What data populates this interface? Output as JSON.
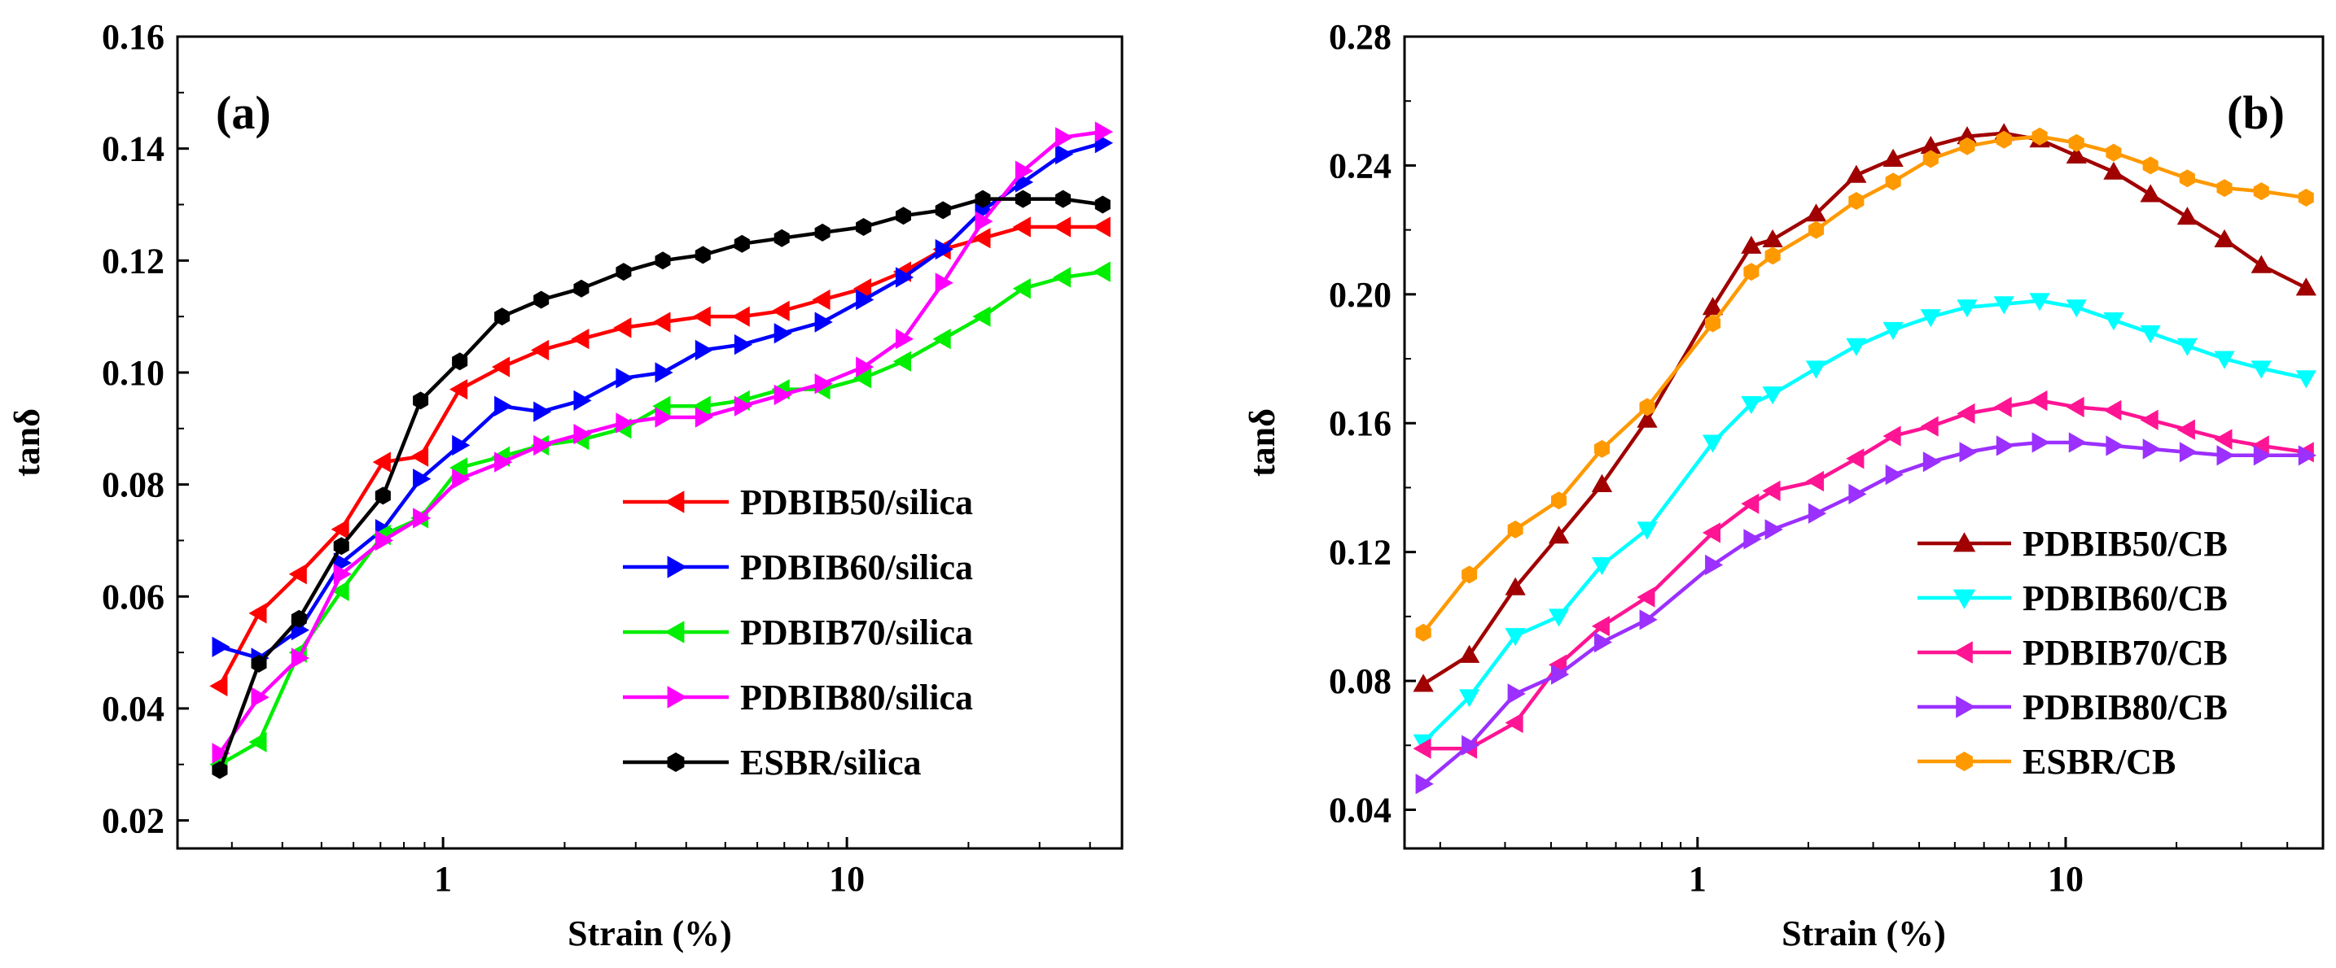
{
  "chart_data": [
    {
      "type": "line",
      "panel_label": "(a)",
      "xlabel": "Strain (%)",
      "ylabel": "tanδ",
      "xscale": "log",
      "xlim": [
        0.22,
        48
      ],
      "ylim": [
        0.015,
        0.16
      ],
      "xticks": [
        1,
        10
      ],
      "xtick_labels": [
        "1",
        "10"
      ],
      "yticks": [
        0.02,
        0.04,
        0.06,
        0.08,
        0.1,
        0.12,
        0.14,
        0.16
      ],
      "ytick_labels": [
        "0.02",
        "0.04",
        "0.06",
        "0.08",
        "0.10",
        "0.12",
        "0.14",
        "0.16"
      ],
      "legend_position": "bottom-right",
      "series": [
        {
          "name": "PDBIB50/silica",
          "color": "#ff0000",
          "marker": "triangle-left",
          "x": [
            0.28,
            0.35,
            0.44,
            0.56,
            0.71,
            0.88,
            1.1,
            1.4,
            1.75,
            2.2,
            2.8,
            3.5,
            4.4,
            5.5,
            6.9,
            8.7,
            11,
            13.8,
            17.3,
            21.7,
            27.3,
            34.3,
            43
          ],
          "values": [
            0.044,
            0.057,
            0.064,
            0.072,
            0.084,
            0.085,
            0.097,
            0.101,
            0.104,
            0.106,
            0.108,
            0.109,
            0.11,
            0.11,
            0.111,
            0.113,
            0.115,
            0.118,
            0.122,
            0.124,
            0.126,
            0.126,
            0.126
          ]
        },
        {
          "name": "PDBIB60/silica",
          "color": "#0000ff",
          "marker": "triangle-right",
          "x": [
            0.28,
            0.35,
            0.44,
            0.56,
            0.71,
            0.88,
            1.1,
            1.4,
            1.75,
            2.2,
            2.8,
            3.5,
            4.4,
            5.5,
            6.9,
            8.7,
            11,
            13.8,
            17.3,
            21.7,
            27.3,
            34.3,
            43
          ],
          "values": [
            0.051,
            0.049,
            0.054,
            0.066,
            0.072,
            0.081,
            0.087,
            0.094,
            0.093,
            0.095,
            0.099,
            0.1,
            0.104,
            0.105,
            0.107,
            0.109,
            0.113,
            0.117,
            0.122,
            0.129,
            0.134,
            0.139,
            0.141
          ]
        },
        {
          "name": "PDBIB70/silica",
          "color": "#00ee00",
          "marker": "triangle-left",
          "x": [
            0.28,
            0.35,
            0.44,
            0.56,
            0.71,
            0.88,
            1.1,
            1.4,
            1.75,
            2.2,
            2.8,
            3.5,
            4.4,
            5.5,
            6.9,
            8.7,
            11,
            13.8,
            17.3,
            21.7,
            27.3,
            34.3,
            43
          ],
          "values": [
            0.03,
            0.034,
            0.05,
            0.061,
            0.071,
            0.074,
            0.083,
            0.085,
            0.087,
            0.088,
            0.09,
            0.094,
            0.094,
            0.095,
            0.097,
            0.097,
            0.099,
            0.102,
            0.106,
            0.11,
            0.115,
            0.117,
            0.118
          ]
        },
        {
          "name": "PDBIB80/silica",
          "color": "#ff00ff",
          "marker": "triangle-right",
          "x": [
            0.28,
            0.35,
            0.44,
            0.56,
            0.71,
            0.88,
            1.1,
            1.4,
            1.75,
            2.2,
            2.8,
            3.5,
            4.4,
            5.5,
            6.9,
            8.7,
            11,
            13.8,
            17.3,
            21.7,
            27.3,
            34.3,
            43
          ],
          "values": [
            0.032,
            0.042,
            0.049,
            0.064,
            0.07,
            0.074,
            0.081,
            0.084,
            0.087,
            0.089,
            0.091,
            0.092,
            0.092,
            0.094,
            0.096,
            0.098,
            0.101,
            0.106,
            0.116,
            0.127,
            0.136,
            0.142,
            0.143
          ]
        },
        {
          "name": "ESBR/silica",
          "color": "#000000",
          "marker": "hexagon",
          "x": [
            0.28,
            0.35,
            0.44,
            0.56,
            0.71,
            0.88,
            1.1,
            1.4,
            1.75,
            2.2,
            2.8,
            3.5,
            4.4,
            5.5,
            6.9,
            8.7,
            11,
            13.8,
            17.3,
            21.7,
            27.3,
            34.3,
            43
          ],
          "values": [
            0.029,
            0.048,
            0.056,
            0.069,
            0.078,
            0.095,
            0.102,
            0.11,
            0.113,
            0.115,
            0.118,
            0.12,
            0.121,
            0.123,
            0.124,
            0.125,
            0.126,
            0.128,
            0.129,
            0.131,
            0.131,
            0.131,
            0.13
          ]
        }
      ]
    },
    {
      "type": "line",
      "panel_label": "(b)",
      "xlabel": "Strain (%)",
      "ylabel": "tanδ",
      "xscale": "log",
      "xlim": [
        0.16,
        50
      ],
      "ylim": [
        0.028,
        0.28
      ],
      "xticks": [
        1,
        10
      ],
      "xtick_labels": [
        "1",
        "10"
      ],
      "yticks": [
        0.04,
        0.08,
        0.12,
        0.16,
        0.2,
        0.24,
        0.28
      ],
      "ytick_labels": [
        "0.04",
        "0.08",
        "0.12",
        "0.16",
        "0.20",
        "0.24",
        "0.28"
      ],
      "legend_position": "bottom-right",
      "series": [
        {
          "name": "PDBIB50/CB",
          "color": "#a00000",
          "marker": "triangle-up",
          "x": [
            0.18,
            0.24,
            0.32,
            0.42,
            0.55,
            0.73,
            1.1,
            1.4,
            1.6,
            2.1,
            2.7,
            3.4,
            4.3,
            5.4,
            6.8,
            8.5,
            10.7,
            13.5,
            17,
            21.4,
            27,
            34,
            45
          ],
          "values": [
            0.079,
            0.088,
            0.109,
            0.125,
            0.141,
            0.161,
            0.196,
            0.215,
            0.217,
            0.225,
            0.237,
            0.242,
            0.246,
            0.249,
            0.25,
            0.248,
            0.243,
            0.238,
            0.231,
            0.224,
            0.217,
            0.209,
            0.202
          ]
        },
        {
          "name": "PDBIB60/CB",
          "color": "#00ffff",
          "marker": "triangle-down",
          "x": [
            0.18,
            0.24,
            0.32,
            0.42,
            0.55,
            0.73,
            1.1,
            1.4,
            1.6,
            2.1,
            2.7,
            3.4,
            4.3,
            5.4,
            6.8,
            8.5,
            10.7,
            13.5,
            17,
            21.4,
            27,
            34,
            45
          ],
          "values": [
            0.061,
            0.075,
            0.094,
            0.1,
            0.116,
            0.127,
            0.154,
            0.166,
            0.169,
            0.177,
            0.184,
            0.189,
            0.193,
            0.196,
            0.197,
            0.198,
            0.196,
            0.192,
            0.188,
            0.184,
            0.18,
            0.177,
            0.174
          ]
        },
        {
          "name": "PDBIB70/CB",
          "color": "#ff1493",
          "marker": "triangle-left",
          "x": [
            0.18,
            0.24,
            0.32,
            0.42,
            0.55,
            0.73,
            1.1,
            1.4,
            1.6,
            2.1,
            2.7,
            3.4,
            4.3,
            5.4,
            6.8,
            8.5,
            10.7,
            13.5,
            17,
            21.4,
            27,
            34,
            45
          ],
          "values": [
            0.059,
            0.059,
            0.067,
            0.085,
            0.097,
            0.106,
            0.126,
            0.135,
            0.139,
            0.142,
            0.149,
            0.156,
            0.159,
            0.163,
            0.165,
            0.167,
            0.165,
            0.164,
            0.161,
            0.158,
            0.155,
            0.153,
            0.151
          ]
        },
        {
          "name": "PDBIB80/CB",
          "color": "#9b30ff",
          "marker": "triangle-right",
          "x": [
            0.18,
            0.24,
            0.32,
            0.42,
            0.55,
            0.73,
            1.1,
            1.4,
            1.6,
            2.1,
            2.7,
            3.4,
            4.3,
            5.4,
            6.8,
            8.5,
            10.7,
            13.5,
            17,
            21.4,
            27,
            34,
            45
          ],
          "values": [
            0.048,
            0.06,
            0.076,
            0.082,
            0.092,
            0.099,
            0.116,
            0.124,
            0.127,
            0.132,
            0.138,
            0.144,
            0.148,
            0.151,
            0.153,
            0.154,
            0.154,
            0.153,
            0.152,
            0.151,
            0.15,
            0.15,
            0.15
          ]
        },
        {
          "name": "ESBR/CB",
          "color": "#ff9900",
          "marker": "hexagon",
          "x": [
            0.18,
            0.24,
            0.32,
            0.42,
            0.55,
            0.73,
            1.1,
            1.4,
            1.6,
            2.1,
            2.7,
            3.4,
            4.3,
            5.4,
            6.8,
            8.5,
            10.7,
            13.5,
            17,
            21.4,
            27,
            34,
            45
          ],
          "values": [
            0.095,
            0.113,
            0.127,
            0.136,
            0.152,
            0.165,
            0.191,
            0.207,
            0.212,
            0.22,
            0.229,
            0.235,
            0.242,
            0.246,
            0.248,
            0.249,
            0.247,
            0.244,
            0.24,
            0.236,
            0.233,
            0.232,
            0.23
          ]
        }
      ]
    }
  ]
}
